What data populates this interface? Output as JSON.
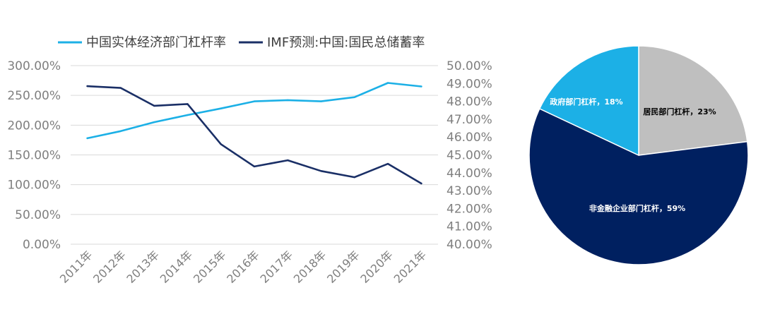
{
  "chart_data": [
    {
      "type": "line",
      "categories": [
        "2011年",
        "2012年",
        "2013年",
        "2014年",
        "2015年",
        "2016年",
        "2017年",
        "2018年",
        "2019年",
        "2020年",
        "2021年"
      ],
      "series": [
        {
          "name": "中国实体经济部门杠杆率",
          "axis": "left",
          "color": "#1cb0e6",
          "values": [
            178,
            190,
            205,
            217,
            228,
            240,
            242,
            240,
            247,
            271,
            265
          ]
        },
        {
          "name": "IMF预测:中国:国民总储蓄率",
          "axis": "right",
          "color": "#1a2f66",
          "values": [
            48.85,
            48.75,
            47.75,
            47.85,
            45.6,
            44.35,
            44.7,
            44.1,
            43.75,
            44.5,
            43.4
          ]
        }
      ],
      "y_left": {
        "range": [
          0,
          300
        ],
        "ticks": [
          0,
          50,
          100,
          150,
          200,
          250,
          300
        ],
        "tick_labels": [
          "0.00%",
          "50.00%",
          "100.00%",
          "150.00%",
          "200.00%",
          "250.00%",
          "300.00%"
        ]
      },
      "y_right": {
        "range": [
          40,
          50
        ],
        "ticks": [
          40,
          41,
          42,
          43,
          44,
          45,
          46,
          47,
          48,
          49,
          50
        ],
        "tick_labels": [
          "40.00%",
          "41.00%",
          "42.00%",
          "43.00%",
          "44.00%",
          "45.00%",
          "46.00%",
          "47.00%",
          "48.00%",
          "49.00%",
          "50.00%"
        ]
      },
      "grid": true,
      "legend": "top"
    },
    {
      "type": "pie",
      "slices": [
        {
          "label": "居民部门杠杆，23%",
          "value": 23,
          "color": "#bfbfbf",
          "text_color": "#000000"
        },
        {
          "label": "非金融企业部门杠杆，59%",
          "value": 59,
          "color": "#002060",
          "text_color": "#ffffff"
        },
        {
          "label": "政府部门杠杆，18%",
          "value": 18,
          "color": "#1cb0e6",
          "text_color": "#ffffff"
        }
      ]
    }
  ]
}
